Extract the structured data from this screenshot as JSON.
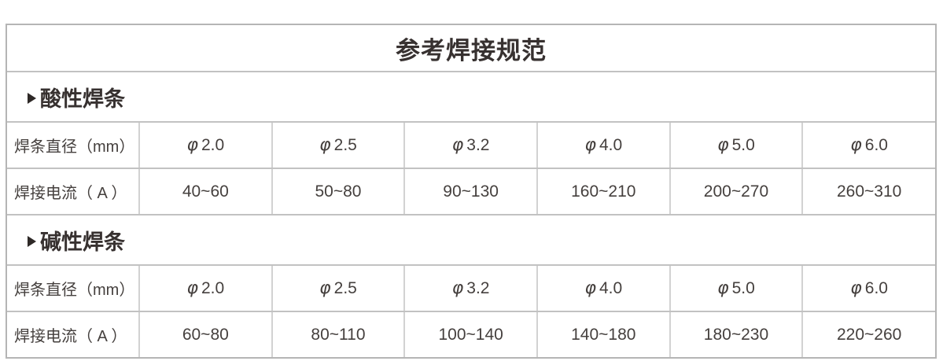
{
  "table": {
    "title": "参考焊接规范",
    "phi_symbol": "φ",
    "marker_icon": "right-triangle-icon",
    "row_labels": {
      "diameter": "焊条直径（mm）",
      "current": "焊接电流（ A ）"
    },
    "sections": [
      {
        "name": "酸性焊条",
        "diameters": [
          "2.0",
          "2.5",
          "3.2",
          "4.0",
          "5.0",
          "6.0"
        ],
        "currents": [
          "40~60",
          "50~80",
          "90~130",
          "160~210",
          "200~270",
          "260~310"
        ]
      },
      {
        "name": "碱性焊条",
        "diameters": [
          "2.0",
          "2.5",
          "3.2",
          "4.0",
          "5.0",
          "6.0"
        ],
        "currents": [
          "60~80",
          "80~110",
          "100~140",
          "140~180",
          "180~230",
          "220~260"
        ]
      }
    ]
  },
  "colors": {
    "background": "#ffffff",
    "outer_border": "#b5b5b5",
    "h_border": "#c2c2c2",
    "v_border": "#d2d2d2",
    "heading_text": "#373130",
    "body_text": "#45403e",
    "marker": "#2e2927"
  }
}
